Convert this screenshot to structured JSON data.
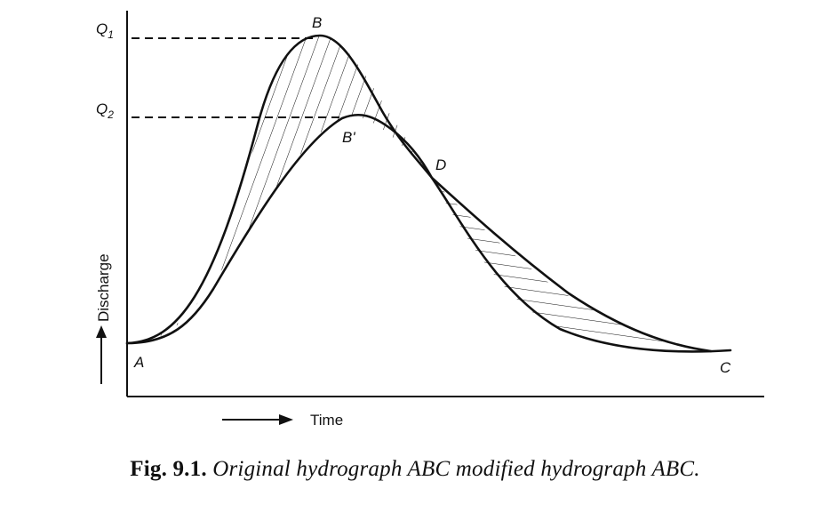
{
  "diagram": {
    "labels": {
      "q1": "Q",
      "q1_sub": "1",
      "q2": "Q",
      "q2_sub": "2",
      "b": "B",
      "b_prime": "B'",
      "d": "D",
      "a": "A",
      "c": "C"
    },
    "y_axis_label": "Discharge",
    "x_axis_label": "Time"
  },
  "caption": {
    "number": "Fig. 9.1.",
    "text": "Original hydrograph ABC modified hydrograph ABC."
  },
  "colors": {
    "ink": "#111111",
    "background": "#ffffff"
  }
}
